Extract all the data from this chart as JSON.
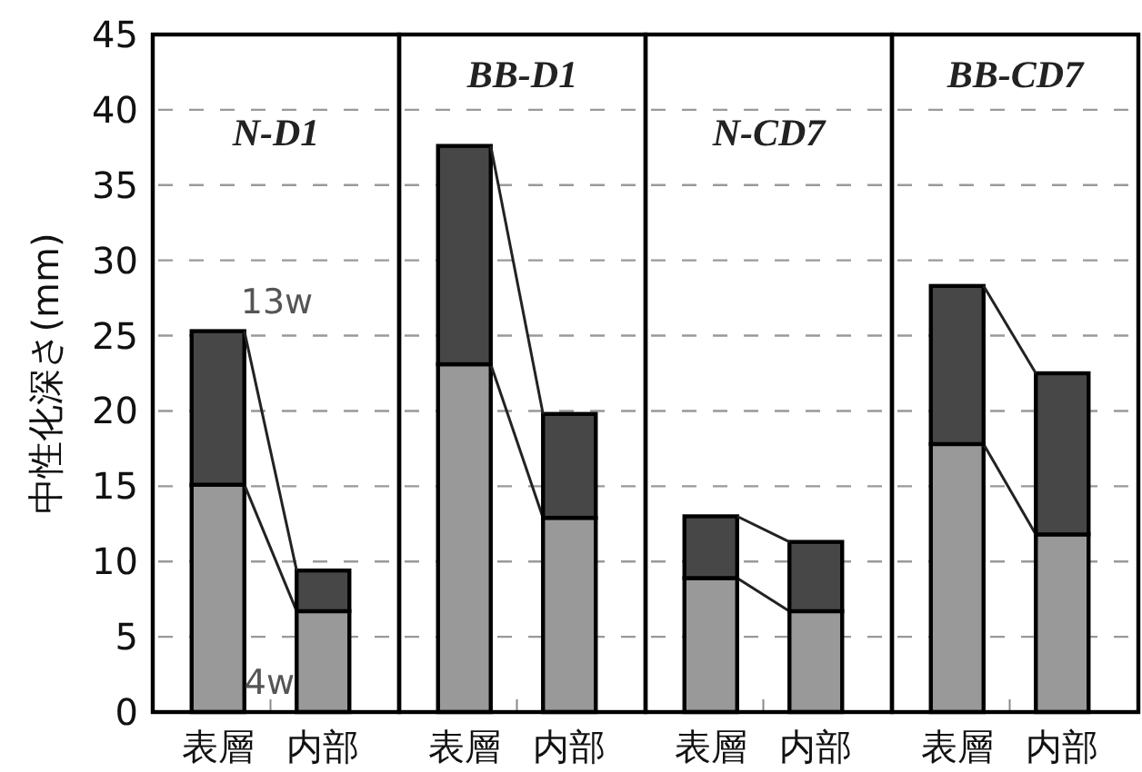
{
  "chart_data": [
    {
      "type": "bar",
      "stacked": true,
      "title": "N-D1",
      "ylabel": "中性化深さ(mm)",
      "categories": [
        "表層",
        "内部"
      ],
      "series": [
        {
          "name": "4w",
          "color": "#999999",
          "values": [
            15.1,
            6.7
          ]
        },
        {
          "name": "13w",
          "color": "#474747",
          "values": [
            10.2,
            2.7
          ]
        }
      ],
      "ylim": [
        0,
        45
      ],
      "yticks": [
        0,
        5,
        10,
        15,
        20,
        25,
        30,
        35,
        40,
        45
      ],
      "grid": "y"
    },
    {
      "type": "bar",
      "stacked": true,
      "title": "BB-D1",
      "categories": [
        "表層",
        "内部"
      ],
      "series": [
        {
          "color": "#999999",
          "values": [
            23.1,
            12.9
          ]
        },
        {
          "color": "#474747",
          "values": [
            14.5,
            6.9
          ]
        }
      ],
      "ylim": [
        0,
        45
      ],
      "yticks": [
        0,
        5,
        10,
        15,
        20,
        25,
        30,
        35,
        40,
        45
      ],
      "grid": "y",
      "tick_labels": "x"
    },
    {
      "type": "bar",
      "stacked": true,
      "title": "N-CD7",
      "categories": [
        "表層",
        "内部"
      ],
      "series": [
        {
          "color": "#999999",
          "values": [
            8.9,
            6.7
          ]
        },
        {
          "color": "#474747",
          "values": [
            4.1,
            4.6
          ]
        }
      ],
      "ylim": [
        0,
        45
      ],
      "yticks": [
        0,
        5,
        10,
        15,
        20,
        25,
        30,
        35,
        40,
        45
      ],
      "grid": "y",
      "tick_labels": "x"
    },
    {
      "type": "bar",
      "stacked": true,
      "title": "BB-CD7",
      "categories": [
        "表層",
        "内部"
      ],
      "series": [
        {
          "color": "#999999",
          "values": [
            17.8,
            11.8
          ]
        },
        {
          "color": "#474747",
          "values": [
            10.5,
            10.7
          ]
        }
      ],
      "ylim": [
        0,
        45
      ],
      "yticks": [
        0,
        5,
        10,
        15,
        20,
        25,
        30,
        35,
        40,
        45
      ],
      "grid": "y",
      "tick_labels": "x"
    }
  ]
}
